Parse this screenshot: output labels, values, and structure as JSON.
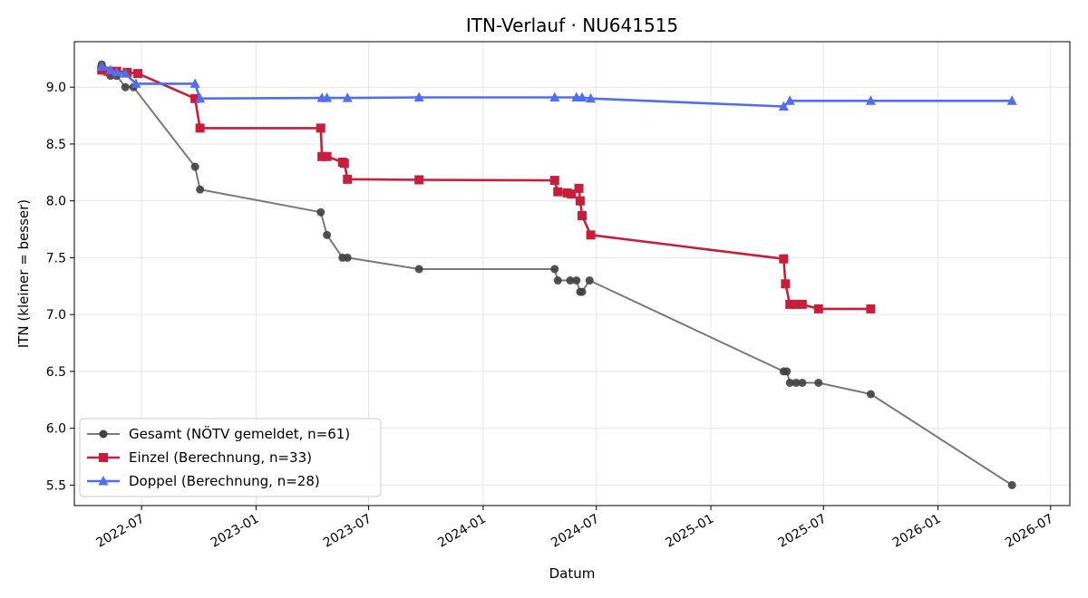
{
  "chart_data": {
    "type": "line",
    "title": "ITN-Verlauf · NU641515",
    "xlabel": "Datum",
    "ylabel": "ITN  (kleiner = besser)",
    "xlim": [
      "2022-03-15",
      "2026-08-01"
    ],
    "ylim": [
      5.32,
      9.4
    ],
    "x_ticks": [
      "2022-07",
      "2023-01",
      "2023-07",
      "2024-01",
      "2024-07",
      "2025-01",
      "2025-07",
      "2026-01",
      "2026-07"
    ],
    "y_ticks": [
      "5.5",
      "6.0",
      "6.5",
      "7.0",
      "7.5",
      "8.0",
      "8.5",
      "9.0"
    ],
    "grid": true,
    "legend_position": "lower left",
    "series": [
      {
        "name": "Gesamt (NÖTV gemeldet, n=61)",
        "color": "#404040",
        "marker": "circle",
        "points": [
          [
            "2022-04-28",
            9.2
          ],
          [
            "2022-05-02",
            9.15
          ],
          [
            "2022-05-12",
            9.1
          ],
          [
            "2022-05-22",
            9.1
          ],
          [
            "2022-06-05",
            9.0
          ],
          [
            "2022-06-18",
            9.0
          ],
          [
            "2022-09-25",
            8.3
          ],
          [
            "2022-10-03",
            8.1
          ],
          [
            "2023-04-15",
            7.9
          ],
          [
            "2023-04-25",
            7.7
          ],
          [
            "2023-05-20",
            7.5
          ],
          [
            "2023-05-28",
            7.5
          ],
          [
            "2023-09-20",
            7.4
          ],
          [
            "2024-04-25",
            7.4
          ],
          [
            "2024-04-30",
            7.3
          ],
          [
            "2024-05-20",
            7.3
          ],
          [
            "2024-05-30",
            7.3
          ],
          [
            "2024-06-05",
            7.2
          ],
          [
            "2024-06-08",
            7.2
          ],
          [
            "2024-06-20",
            7.3
          ],
          [
            "2025-04-28",
            6.5
          ],
          [
            "2025-05-03",
            6.5
          ],
          [
            "2025-05-08",
            6.4
          ],
          [
            "2025-05-18",
            6.4
          ],
          [
            "2025-05-28",
            6.4
          ],
          [
            "2025-06-23",
            6.4
          ],
          [
            "2025-09-15",
            6.3
          ],
          [
            "2026-04-30",
            5.5
          ]
        ]
      },
      {
        "name": "Einzel (Berechnung, n=33)",
        "color": "#c81e3c",
        "marker": "square",
        "points": [
          [
            "2022-04-28",
            9.15
          ],
          [
            "2022-05-08",
            9.14
          ],
          [
            "2022-05-22",
            9.14
          ],
          [
            "2022-06-08",
            9.13
          ],
          [
            "2022-06-25",
            9.12
          ],
          [
            "2022-09-25",
            8.9
          ],
          [
            "2022-10-03",
            8.64
          ],
          [
            "2023-04-15",
            8.64
          ],
          [
            "2023-04-17",
            8.39
          ],
          [
            "2023-04-25",
            8.39
          ],
          [
            "2023-05-20",
            8.34
          ],
          [
            "2023-05-23",
            8.33
          ],
          [
            "2023-05-28",
            8.19
          ],
          [
            "2023-09-20",
            8.185
          ],
          [
            "2024-04-25",
            8.18
          ],
          [
            "2024-04-30",
            8.08
          ],
          [
            "2024-05-15",
            8.07
          ],
          [
            "2024-05-22",
            8.06
          ],
          [
            "2024-06-03",
            8.11
          ],
          [
            "2024-06-05",
            8.0
          ],
          [
            "2024-06-08",
            7.87
          ],
          [
            "2024-06-22",
            7.7
          ],
          [
            "2025-04-28",
            7.49
          ],
          [
            "2025-05-01",
            7.27
          ],
          [
            "2025-05-08",
            7.09
          ],
          [
            "2025-05-18",
            7.09
          ],
          [
            "2025-05-28",
            7.09
          ],
          [
            "2025-06-23",
            7.05
          ],
          [
            "2025-09-15",
            7.05
          ]
        ]
      },
      {
        "name": "Doppel (Berechnung, n=28)",
        "color": "#4f6ef0",
        "marker": "triangle",
        "points": [
          [
            "2022-04-28",
            9.18
          ],
          [
            "2022-05-12",
            9.15
          ],
          [
            "2022-05-22",
            9.13
          ],
          [
            "2022-06-05",
            9.12
          ],
          [
            "2022-06-22",
            9.03
          ],
          [
            "2022-09-25",
            9.03
          ],
          [
            "2022-10-03",
            8.9
          ],
          [
            "2023-04-17",
            8.905
          ],
          [
            "2023-04-25",
            8.905
          ],
          [
            "2023-05-28",
            8.905
          ],
          [
            "2023-09-20",
            8.91
          ],
          [
            "2024-04-25",
            8.91
          ],
          [
            "2024-05-30",
            8.91
          ],
          [
            "2024-06-08",
            8.91
          ],
          [
            "2024-06-22",
            8.9
          ],
          [
            "2025-04-28",
            8.83
          ],
          [
            "2025-05-08",
            8.88
          ],
          [
            "2025-09-15",
            8.88
          ],
          [
            "2026-04-30",
            8.88
          ]
        ]
      }
    ]
  }
}
